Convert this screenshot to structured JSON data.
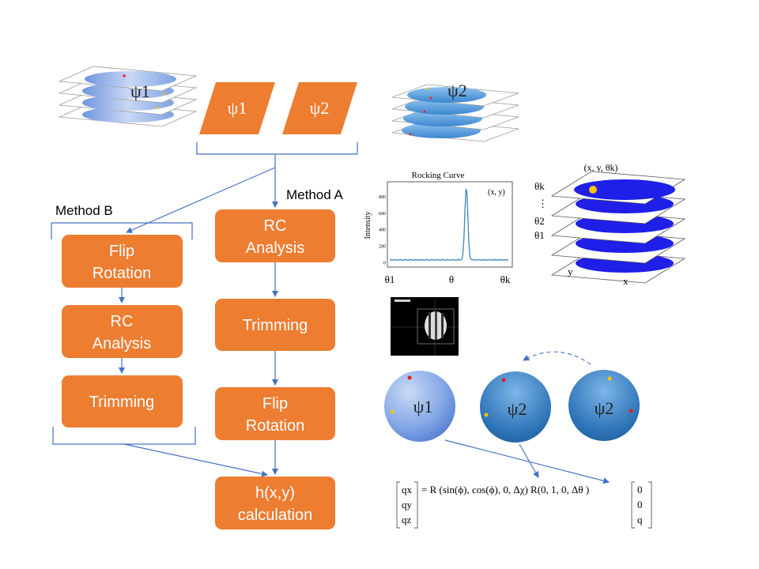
{
  "inputs": {
    "psi1_label": "ψ1",
    "psi2_label": "ψ2",
    "stack1_label": "ψ1",
    "stack2_label": "ψ2"
  },
  "methods": {
    "method_a": "Method A",
    "method_b": "Method B"
  },
  "method_a_steps": {
    "rc_line1": "RC",
    "rc_line2": "Analysis",
    "trimming": "Trimming",
    "flip_line1": "Flip",
    "flip_line2": "Rotation"
  },
  "method_b_steps": {
    "flip_line1": "Flip",
    "flip_line2": "Rotation",
    "rc_line1": "RC",
    "rc_line2": "Analysis",
    "trimming": "Trimming"
  },
  "output": {
    "line1": "h(x,y)",
    "line2": "calculation"
  },
  "rocking_curve": {
    "title": "Rocking Curve",
    "ylabel": "Intensity",
    "annotation": "(x, y)",
    "yticks": [
      "0",
      "200",
      "400",
      "600",
      "800"
    ],
    "xticks": [
      "θ1",
      "θ",
      "θk"
    ],
    "baseline": 30,
    "peak": 920,
    "ymax": 900
  },
  "volume": {
    "title": "(x, y, θk)",
    "theta_labels": [
      "θk",
      "⋮",
      "θ2",
      "θ1"
    ],
    "xlabel": "x",
    "ylabel": "y"
  },
  "spheres": {
    "s1": "ψ1",
    "s2": "ψ2",
    "s3": "ψ2"
  },
  "equation": {
    "lhs": [
      "qx",
      "qy",
      "qz"
    ],
    "middle": "= R (sin(ϕ), cos(ϕ), 0,  Δχ) R(0, 1, 0, Δθ )",
    "rhs": [
      "0",
      "0",
      "q"
    ]
  },
  "colors": {
    "box_fill": "#ED7D31",
    "connector": "#4472C4",
    "disk_blue": "#1F1FE8"
  }
}
